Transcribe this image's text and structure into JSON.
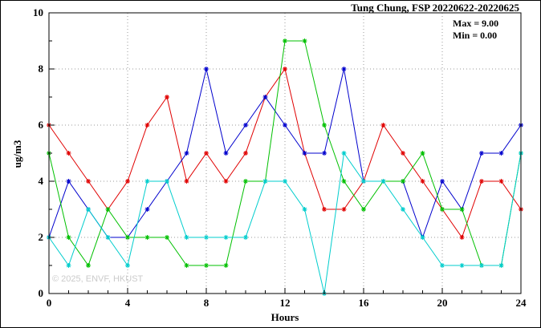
{
  "chart_data": {
    "type": "line",
    "title": "Tung Chung, FSP 20220622-20220625",
    "xlabel": "Hours",
    "ylabel": "ug/m3",
    "xlim": [
      0,
      24
    ],
    "ylim": [
      0,
      10
    ],
    "xticks_major": [
      0,
      4,
      8,
      12,
      16,
      20,
      24
    ],
    "yticks_major": [
      0,
      2,
      4,
      6,
      8,
      10
    ],
    "xtick_minor_step": 1,
    "ytick_minor_step": 1,
    "grid": {
      "style": "dotted",
      "color": "#999999",
      "at": "major ticks"
    },
    "marker": "asterisk",
    "background": "#ffffff",
    "legend": "none",
    "annotations": [
      "Max = 9.00",
      "Min = 0.00"
    ],
    "watermark": "© 2025, ENVF, HKUST",
    "x": [
      0,
      1,
      2,
      3,
      4,
      5,
      6,
      7,
      8,
      9,
      10,
      11,
      12,
      13,
      14,
      15,
      16,
      17,
      18,
      19,
      20,
      21,
      22,
      23,
      24
    ],
    "series": [
      {
        "name": "red",
        "color": "#e00000",
        "values": [
          6,
          5,
          4,
          3,
          4,
          6,
          7,
          4,
          5,
          4,
          5,
          7,
          8,
          5,
          3,
          3,
          4,
          6,
          5,
          4,
          3,
          2,
          4,
          4,
          3
        ]
      },
      {
        "name": "blue",
        "color": "#0000cd",
        "values": [
          2,
          4,
          3,
          2,
          2,
          3,
          4,
          5,
          8,
          5,
          6,
          7,
          6,
          5,
          5,
          8,
          4,
          4,
          4,
          2,
          4,
          3,
          5,
          5,
          6
        ]
      },
      {
        "name": "green",
        "color": "#00c000",
        "values": [
          5,
          2,
          1,
          3,
          2,
          2,
          2,
          1,
          1,
          1,
          4,
          4,
          9,
          9,
          6,
          4,
          3,
          4,
          4,
          5,
          3,
          3,
          1,
          1,
          5
        ]
      },
      {
        "name": "cyan",
        "color": "#00cdcd",
        "values": [
          2,
          1,
          3,
          2,
          1,
          4,
          4,
          2,
          2,
          2,
          2,
          4,
          4,
          3,
          0,
          5,
          4,
          4,
          3,
          2,
          1,
          1,
          1,
          1,
          5
        ]
      }
    ]
  }
}
